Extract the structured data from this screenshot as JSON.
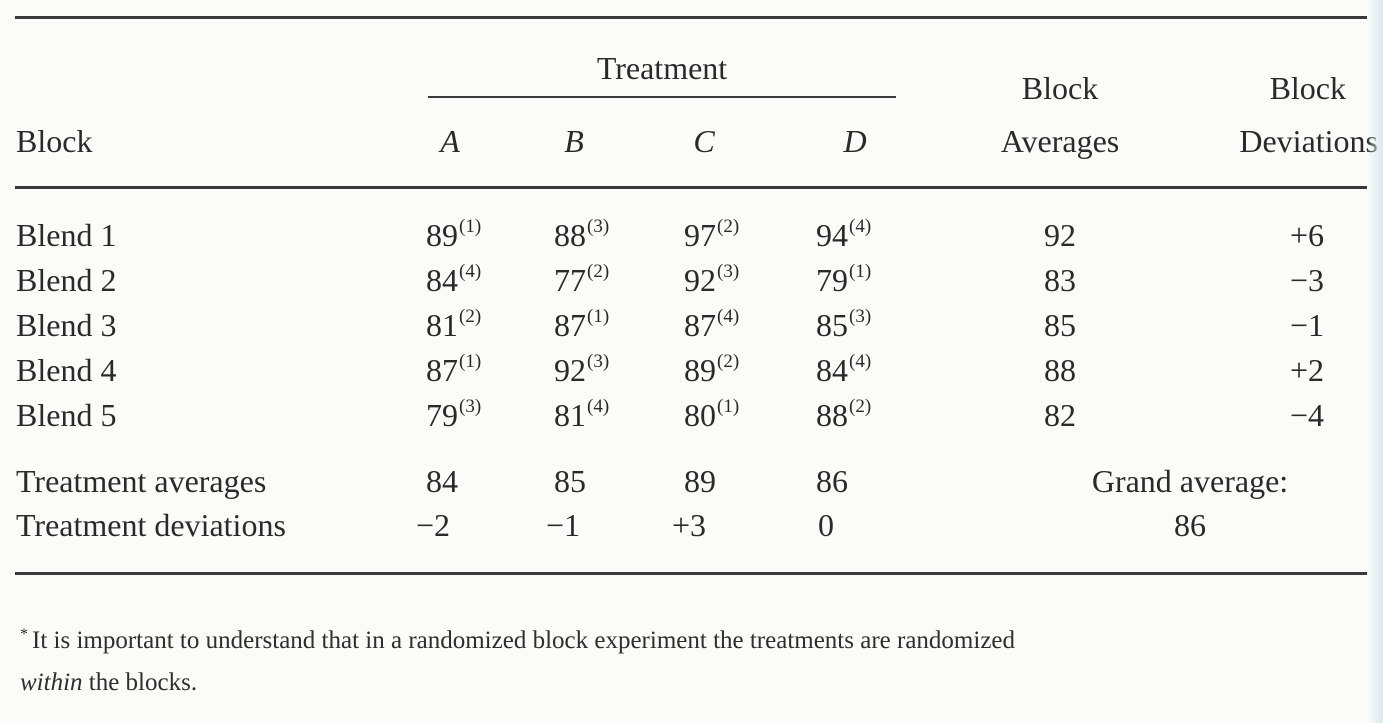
{
  "header": {
    "treatment_group": "Treatment",
    "block_col": "Block",
    "treatments": [
      "A",
      "B",
      "C",
      "D"
    ],
    "block_averages": [
      "Block",
      "Averages"
    ],
    "block_deviations": [
      "Block",
      "Deviations"
    ]
  },
  "rows": [
    {
      "label": "Blend 1",
      "cells": [
        {
          "v": "89",
          "o": "(1)"
        },
        {
          "v": "88",
          "o": "(3)"
        },
        {
          "v": "97",
          "o": "(2)"
        },
        {
          "v": "94",
          "o": "(4)"
        }
      ],
      "avg": "92",
      "dev": "+6"
    },
    {
      "label": "Blend 2",
      "cells": [
        {
          "v": "84",
          "o": "(4)"
        },
        {
          "v": "77",
          "o": "(2)"
        },
        {
          "v": "92",
          "o": "(3)"
        },
        {
          "v": "79",
          "o": "(1)"
        }
      ],
      "avg": "83",
      "dev": "−3"
    },
    {
      "label": "Blend 3",
      "cells": [
        {
          "v": "81",
          "o": "(2)"
        },
        {
          "v": "87",
          "o": "(1)"
        },
        {
          "v": "87",
          "o": "(4)"
        },
        {
          "v": "85",
          "o": "(3)"
        }
      ],
      "avg": "85",
      "dev": "−1"
    },
    {
      "label": "Blend 4",
      "cells": [
        {
          "v": "87",
          "o": "(1)"
        },
        {
          "v": "92",
          "o": "(3)"
        },
        {
          "v": "89",
          "o": "(2)"
        },
        {
          "v": "84",
          "o": "(4)"
        }
      ],
      "avg": "88",
      "dev": "+2"
    },
    {
      "label": "Blend 5",
      "cells": [
        {
          "v": "79",
          "o": "(3)"
        },
        {
          "v": "81",
          "o": "(4)"
        },
        {
          "v": "80",
          "o": "(1)"
        },
        {
          "v": "88",
          "o": "(2)"
        }
      ],
      "avg": "82",
      "dev": "−4"
    }
  ],
  "summary": {
    "treatment_averages_label": "Treatment averages",
    "treatment_averages": [
      "84",
      "85",
      "89",
      "86"
    ],
    "treatment_deviations_label": "Treatment deviations",
    "treatment_deviations": [
      "−2",
      "−1",
      "+3",
      "0"
    ],
    "grand_average_label": "Grand average:",
    "grand_average": "86"
  },
  "footnote": {
    "mark": "*",
    "text_before": "It is important to understand that in a randomized block experiment the treatments are randomized",
    "emph": "within",
    "text_after": "the blocks."
  }
}
